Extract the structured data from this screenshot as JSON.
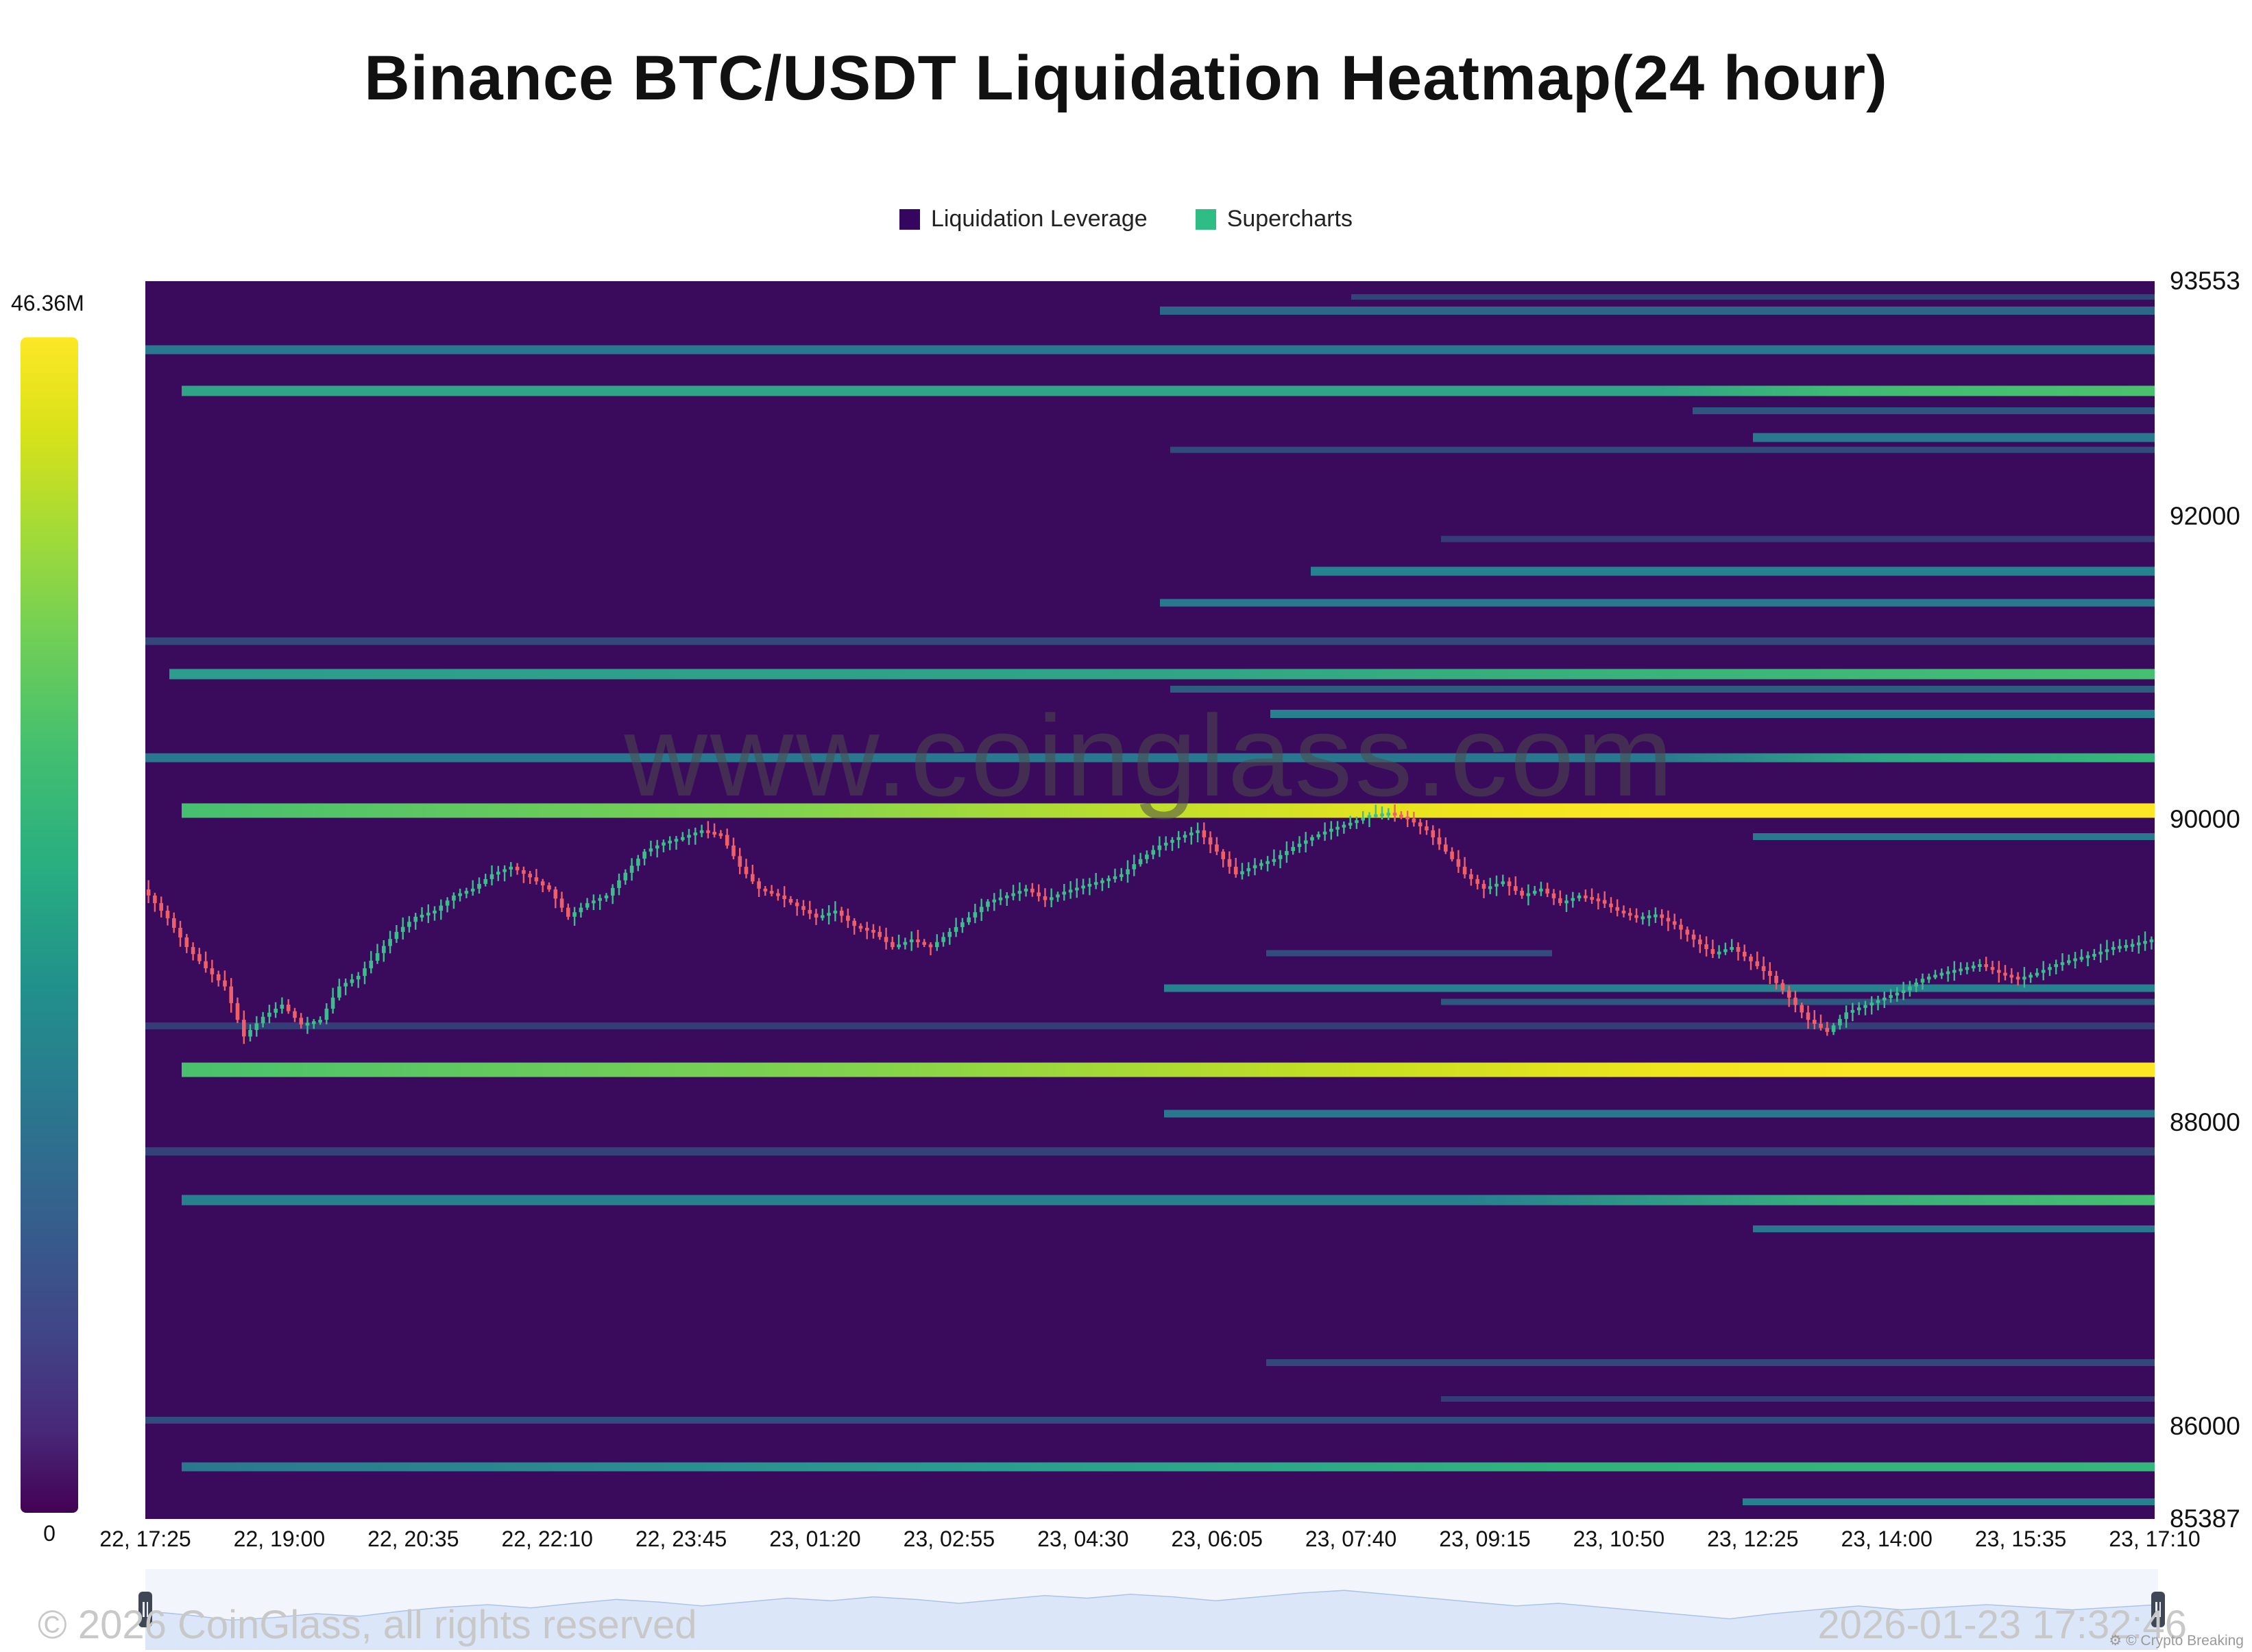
{
  "page": {
    "background": "#ffffff"
  },
  "chart_data": {
    "type": "heatmap",
    "title": "Binance BTC/USDT Liquidation Heatmap(24 hour)",
    "watermark": "www.coinglass.com",
    "legend": [
      {
        "label": "Liquidation Leverage",
        "color": "#35065f"
      },
      {
        "label": "Supercharts",
        "color": "#2ebd85"
      }
    ],
    "colorbar": {
      "max_label": "46.36M",
      "min_label": "0"
    },
    "colors": {
      "background": "#3a0b5d",
      "candle_up": "#3dbd8d",
      "candle_down": "#ef5f67",
      "navigator_fill": "#dbe7f8",
      "navigator_line": "#a9c0e8"
    },
    "y_axis": {
      "min": 85387,
      "max": 93553,
      "ticks": [
        "93553",
        "92000",
        "90000",
        "88000",
        "86000",
        "85387"
      ]
    },
    "x_axis": {
      "ticks": [
        "22, 17:25",
        "22, 19:00",
        "22, 20:35",
        "22, 22:10",
        "22, 23:45",
        "23, 01:20",
        "23, 02:55",
        "23, 04:30",
        "23, 06:05",
        "23, 07:40",
        "23, 09:15",
        "23, 10:50",
        "23, 12:25",
        "23, 14:00",
        "23, 15:35",
        "23, 17:10"
      ]
    },
    "liquidation_bands": [
      {
        "price": 93450,
        "x0": 0.6,
        "x1": 1.0,
        "h": 8,
        "color": "rgba(42,120,142,0.55)"
      },
      {
        "price": 93360,
        "x0": 0.505,
        "x1": 1.0,
        "h": 12,
        "color": "rgba(42,120,142,0.85)"
      },
      {
        "price": 93100,
        "x0": 0.0,
        "x1": 1.0,
        "h": 13,
        "color": "#2a788e"
      },
      {
        "price": 92830,
        "x0": 0.018,
        "x1": 1.0,
        "h": 15,
        "gradient": [
          [
            0,
            "#2fa585"
          ],
          [
            0.75,
            "#2fa585"
          ],
          [
            0.84,
            "#3fbc73"
          ],
          [
            1,
            "#4ac16d"
          ]
        ]
      },
      {
        "price": 92700,
        "x0": 0.77,
        "x1": 1.0,
        "h": 10,
        "color": "rgba(42,120,142,0.7)"
      },
      {
        "price": 92520,
        "x0": 0.8,
        "x1": 1.0,
        "h": 13,
        "color": "#2a788e"
      },
      {
        "price": 92440,
        "x0": 0.51,
        "x1": 1.0,
        "h": 9,
        "color": "rgba(42,120,142,0.6)"
      },
      {
        "price": 91850,
        "x0": 0.645,
        "x1": 1.0,
        "h": 9,
        "color": "rgba(49,104,142,0.55)"
      },
      {
        "price": 91640,
        "x0": 0.58,
        "x1": 1.0,
        "h": 13,
        "color": "#26828e"
      },
      {
        "price": 91430,
        "x0": 0.505,
        "x1": 1.0,
        "h": 11,
        "color": "#2a788e"
      },
      {
        "price": 91180,
        "x0": 0.0,
        "x1": 1.0,
        "h": 11,
        "color": "rgba(49,104,142,0.65)"
      },
      {
        "price": 90960,
        "x0": 0.012,
        "x1": 1.0,
        "h": 15,
        "gradient": [
          [
            0,
            "#2c9c8c"
          ],
          [
            0.5,
            "#2fa585"
          ],
          [
            0.8,
            "#3bb777"
          ],
          [
            1,
            "#45bf70"
          ]
        ]
      },
      {
        "price": 90860,
        "x0": 0.51,
        "x1": 1.0,
        "h": 10,
        "color": "rgba(38,130,142,0.7)"
      },
      {
        "price": 90700,
        "x0": 0.56,
        "x1": 1.0,
        "h": 12,
        "color": "#26828e"
      },
      {
        "price": 90410,
        "x0": 0.0,
        "x1": 1.0,
        "h": 13,
        "gradient": [
          [
            0,
            "#2a788e"
          ],
          [
            0.75,
            "#2a788e"
          ],
          [
            0.86,
            "#2fa585"
          ],
          [
            1,
            "#35b779"
          ]
        ]
      },
      {
        "price": 90060,
        "x0": 0.018,
        "x1": 1.0,
        "h": 21,
        "gradient": [
          [
            0,
            "#45bf70"
          ],
          [
            0.3,
            "#7ed34f"
          ],
          [
            0.5,
            "#c2e02a"
          ],
          [
            0.65,
            "#f0e51c"
          ],
          [
            0.75,
            "#fde725"
          ],
          [
            1,
            "#fde725"
          ]
        ]
      },
      {
        "price": 89890,
        "x0": 0.8,
        "x1": 1.0,
        "h": 10,
        "color": "#2a788e"
      },
      {
        "price": 89120,
        "x0": 0.558,
        "x1": 0.7,
        "h": 9,
        "color": "rgba(49,104,142,0.7)"
      },
      {
        "price": 88890,
        "x0": 0.507,
        "x1": 1.0,
        "h": 11,
        "color": "#26828e"
      },
      {
        "price": 88800,
        "x0": 0.645,
        "x1": 1.0,
        "h": 9,
        "color": "rgba(42,120,142,0.7)"
      },
      {
        "price": 88640,
        "x0": 0.0,
        "x1": 1.0,
        "h": 10,
        "color": "rgba(49,104,142,0.55)"
      },
      {
        "price": 88350,
        "x0": 0.018,
        "x1": 1.0,
        "h": 21,
        "gradient": [
          [
            0,
            "#48c16e"
          ],
          [
            0.35,
            "#84d44b"
          ],
          [
            0.6,
            "#c8e020"
          ],
          [
            0.75,
            "#eee51d"
          ],
          [
            0.86,
            "#fde725"
          ],
          [
            1,
            "#fde725"
          ]
        ]
      },
      {
        "price": 88060,
        "x0": 0.507,
        "x1": 1.0,
        "h": 11,
        "color": "#2a788e"
      },
      {
        "price": 87810,
        "x0": 0.0,
        "x1": 1.0,
        "h": 12,
        "color": "rgba(49,104,142,0.6)"
      },
      {
        "price": 87490,
        "x0": 0.018,
        "x1": 1.0,
        "h": 15,
        "gradient": [
          [
            0,
            "#27808e"
          ],
          [
            0.65,
            "#27808e"
          ],
          [
            0.82,
            "#35ab80"
          ],
          [
            1,
            "#45bf70"
          ]
        ]
      },
      {
        "price": 87300,
        "x0": 0.8,
        "x1": 1.0,
        "h": 10,
        "color": "#2a788e"
      },
      {
        "price": 86420,
        "x0": 0.558,
        "x1": 1.0,
        "h": 10,
        "color": "rgba(49,104,142,0.65)"
      },
      {
        "price": 86180,
        "x0": 0.645,
        "x1": 1.0,
        "h": 8,
        "color": "rgba(49,104,142,0.55)"
      },
      {
        "price": 86040,
        "x0": 0.0,
        "x1": 1.0,
        "h": 10,
        "color": "rgba(49,104,142,0.7)"
      },
      {
        "price": 85730,
        "x0": 0.018,
        "x1": 1.0,
        "h": 13,
        "gradient": [
          [
            0,
            "#2a788e"
          ],
          [
            0.4,
            "#2a9d8f"
          ],
          [
            0.7,
            "#2fb47c"
          ],
          [
            1,
            "#35b779"
          ]
        ]
      },
      {
        "price": 85500,
        "x0": 0.795,
        "x1": 1.0,
        "h": 10,
        "color": "#26828e"
      }
    ],
    "price_line": {
      "unit": "USDT",
      "closes": [
        89500,
        89350,
        89160,
        89020,
        88900,
        88570,
        88700,
        88780,
        88650,
        88680,
        88900,
        88970,
        89120,
        89260,
        89360,
        89400,
        89500,
        89545,
        89640,
        89690,
        89620,
        89540,
        89360,
        89450,
        89500,
        89650,
        89790,
        89850,
        89885,
        89930,
        89900,
        89690,
        89545,
        89500,
        89430,
        89355,
        89400,
        89300,
        89260,
        89160,
        89210,
        89160,
        89260,
        89355,
        89460,
        89500,
        89545,
        89470,
        89525,
        89565,
        89600,
        89640,
        89740,
        89830,
        89885,
        89930,
        89790,
        89640,
        89700,
        89740,
        89820,
        89885,
        89940,
        89980,
        90030,
        90046,
        90008,
        89930,
        89790,
        89640,
        89545,
        89593,
        89500,
        89545,
        89450,
        89500,
        89470,
        89400,
        89355,
        89375,
        89307,
        89210,
        89115,
        89160,
        89066,
        88970,
        88826,
        88680,
        88600,
        88729,
        88777,
        88826,
        88875,
        88951,
        88990,
        89018,
        89047,
        88990,
        88951,
        88990,
        89047,
        89085,
        89115,
        89160,
        89180,
        89210
      ]
    },
    "navigator": {
      "heights": [
        0.5,
        0.44,
        0.36,
        0.4,
        0.46,
        0.42,
        0.5,
        0.56,
        0.6,
        0.55,
        0.62,
        0.68,
        0.64,
        0.58,
        0.64,
        0.7,
        0.66,
        0.72,
        0.68,
        0.62,
        0.68,
        0.74,
        0.7,
        0.76,
        0.72,
        0.66,
        0.72,
        0.78,
        0.82,
        0.76,
        0.7,
        0.64,
        0.58,
        0.62,
        0.56,
        0.5,
        0.44,
        0.38,
        0.46,
        0.52,
        0.58,
        0.52,
        0.56,
        0.6,
        0.56,
        0.52,
        0.56,
        0.6
      ]
    }
  },
  "footer": {
    "left": "© 2026 CoinGlass, all rights reserved",
    "right": "2026-01-23 17:32:46",
    "credit": "© Crypto Breaking"
  }
}
